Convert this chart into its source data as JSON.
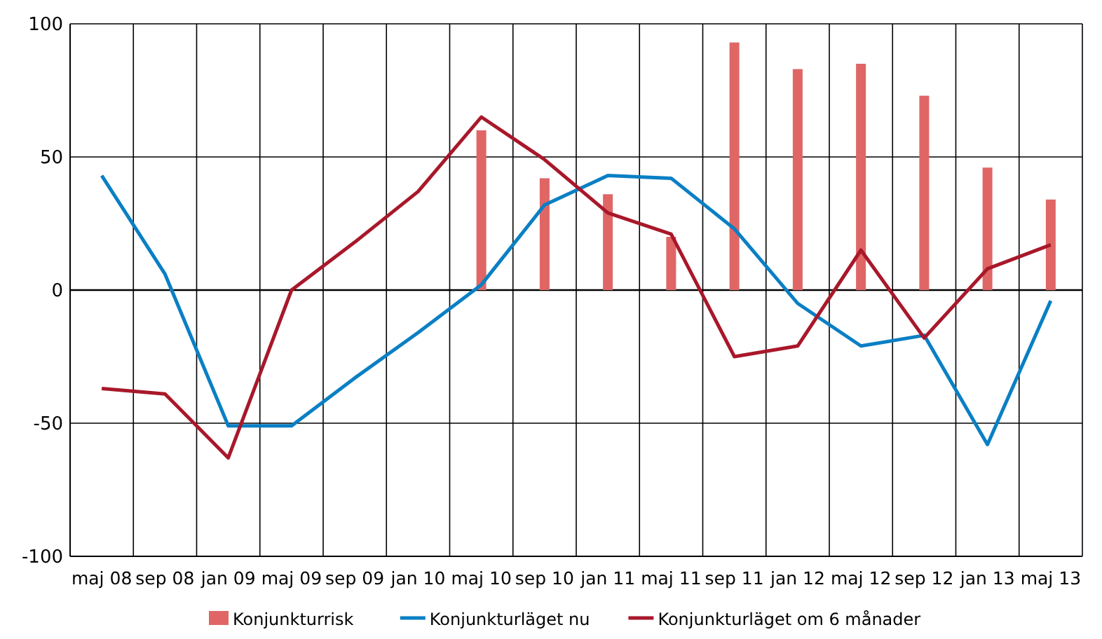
{
  "chart_data": {
    "type": "line",
    "categories": [
      "maj 08",
      "sep 08",
      "jan 09",
      "maj 09",
      "sep 09",
      "jan 10",
      "maj 10",
      "sep 10",
      "jan 11",
      "maj 11",
      "sep 11",
      "jan 12",
      "maj 12",
      "sep 12",
      "jan 13",
      "maj 13"
    ],
    "ylim": [
      -100,
      100
    ],
    "yticks": [
      -100,
      -50,
      0,
      50,
      100
    ],
    "grid": true,
    "legend": "bottom",
    "series": [
      {
        "name": "Konjunkturrisk",
        "type": "bar",
        "color": "#e06666",
        "values": [
          null,
          null,
          null,
          null,
          null,
          null,
          60,
          42,
          36,
          20,
          93,
          83,
          85,
          73,
          46,
          34
        ]
      },
      {
        "name": "Konjunkturläget nu",
        "color": "#0a7fc4",
        "values": [
          43,
          6,
          -51,
          -51,
          -33,
          -16,
          2,
          32,
          43,
          42,
          23,
          -5,
          -21,
          -17,
          -58,
          -4
        ]
      },
      {
        "name": "Konjunkturläget om 6 månader",
        "color": "#a8182a",
        "values": [
          -37,
          -39,
          -63,
          0,
          18,
          37,
          65,
          49,
          29,
          21,
          -25,
          -21,
          15,
          -18,
          8,
          17
        ]
      }
    ]
  }
}
